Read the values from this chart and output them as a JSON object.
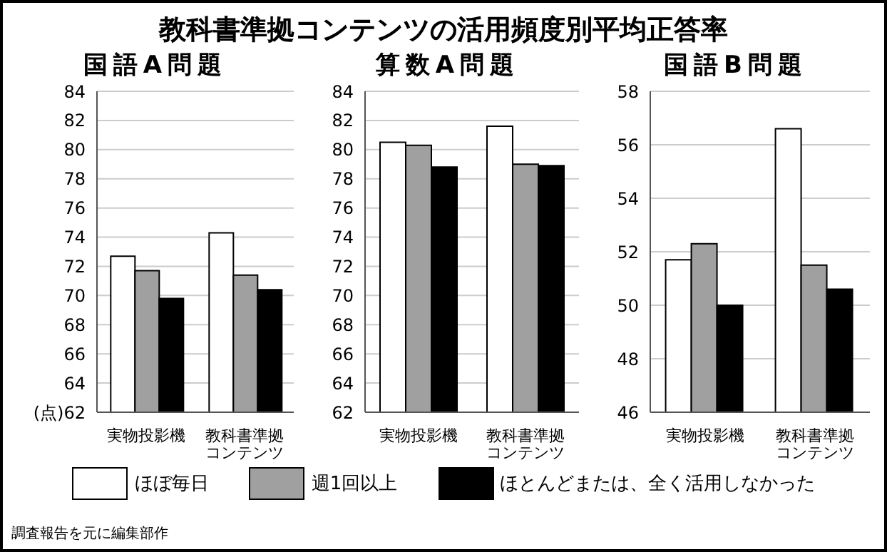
{
  "chart_data": [
    {
      "type": "bar",
      "title": "国語A問題",
      "annotations": [
        "教科書準拠コンテンツの活用頻度別平均正答率",
        "調査報告を元に編集部作"
      ],
      "categories": [
        "実物投影機",
        "教科書準拠コンテンツ"
      ],
      "legend": "bottom",
      "grid": "y",
      "ylim": [
        62,
        84
      ],
      "yticks": [
        {
          "value": 62,
          "label": "(点)62"
        },
        64,
        66,
        68,
        70,
        72,
        74,
        76,
        78,
        80,
        82,
        84
      ],
      "series": [
        {
          "name": "ほぼ毎日",
          "color": "#ffffff",
          "values": [
            72.7,
            74.3
          ]
        },
        {
          "name": "週1回以上",
          "color": "#a0a0a0",
          "values": [
            71.7,
            71.4
          ]
        },
        {
          "name": "ほとんどまたは、全く活用しなかった",
          "color": "#000000",
          "values": [
            69.8,
            70.4
          ]
        }
      ]
    },
    {
      "type": "bar",
      "title": "算数A問題",
      "categories": [
        "実物投影機",
        "教科書準拠コンテンツ"
      ],
      "grid": "y",
      "ylim": [
        62,
        84
      ],
      "yticks": [
        62,
        64,
        66,
        68,
        70,
        72,
        74,
        76,
        78,
        80,
        82,
        84
      ],
      "series": [
        {
          "color": "#ffffff",
          "values": [
            80.5,
            81.6
          ]
        },
        {
          "color": "#a0a0a0",
          "values": [
            80.3,
            79.0
          ]
        },
        {
          "color": "#000000",
          "values": [
            78.8,
            78.9
          ]
        }
      ]
    },
    {
      "type": "bar",
      "title": "国語B問題",
      "categories": [
        "実物投影機",
        "教科書準拠コンテンツ"
      ],
      "grid": "y",
      "ylim": [
        46,
        58
      ],
      "yticks": [
        46,
        48,
        50,
        52,
        54,
        56,
        58
      ],
      "series": [
        {
          "color": "#ffffff",
          "values": [
            51.7,
            56.6
          ]
        },
        {
          "color": "#a0a0a0",
          "values": [
            52.3,
            51.5
          ]
        },
        {
          "color": "#000000",
          "values": [
            50.0,
            50.6
          ]
        }
      ]
    }
  ]
}
